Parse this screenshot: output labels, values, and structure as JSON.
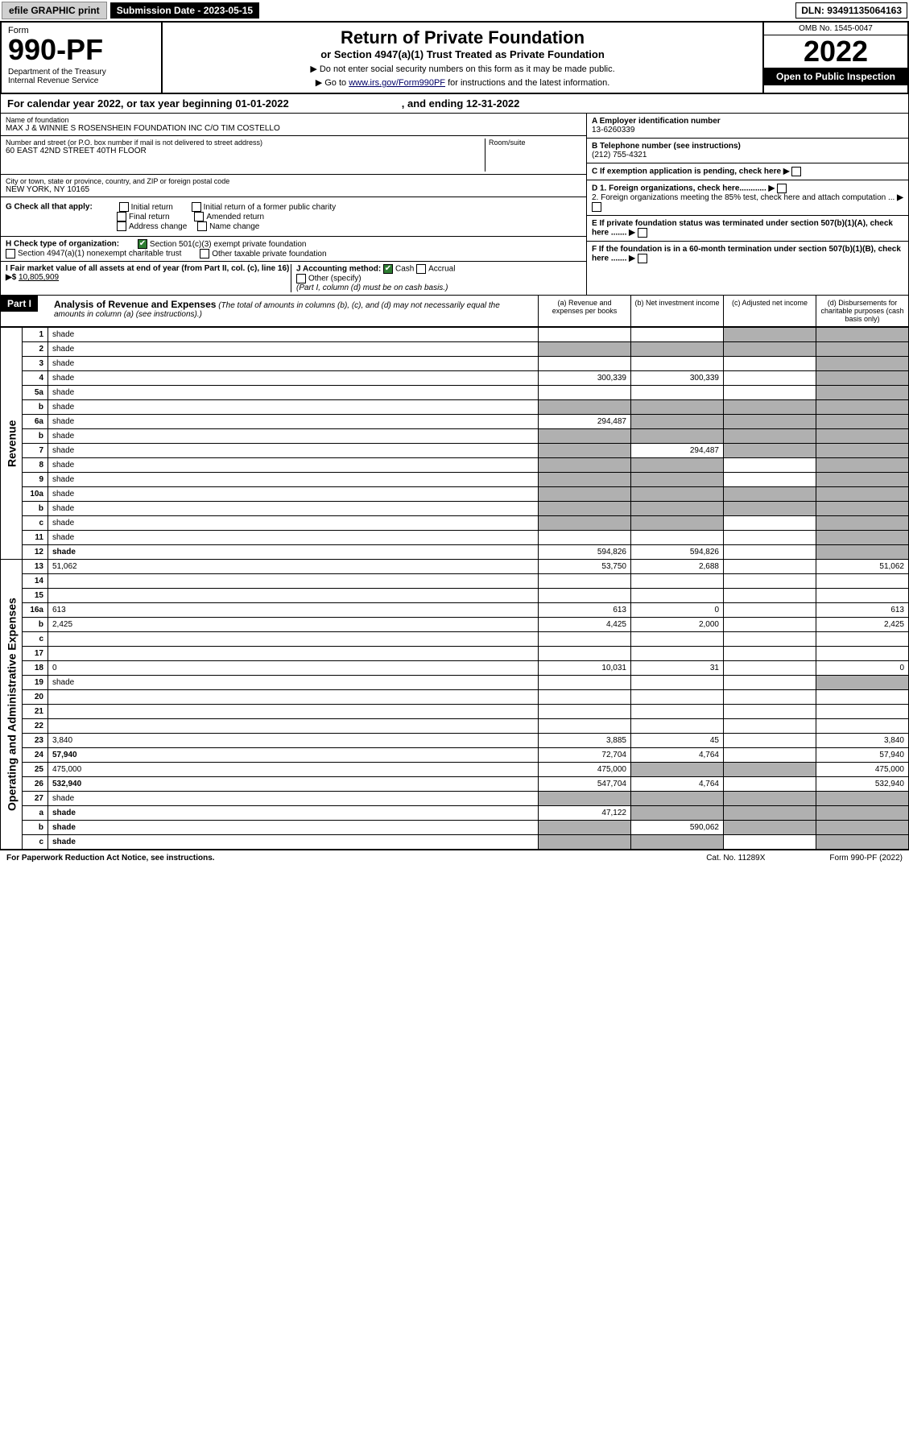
{
  "topbar": {
    "efile": "efile GRAPHIC print",
    "submission": "Submission Date - 2023-05-15",
    "dln": "DLN: 93491135064163"
  },
  "header": {
    "form_word": "Form",
    "form_num": "990-PF",
    "dept": "Department of the Treasury\nInternal Revenue Service",
    "title": "Return of Private Foundation",
    "subtitle": "or Section 4947(a)(1) Trust Treated as Private Foundation",
    "note1": "▶ Do not enter social security numbers on this form as it may be made public.",
    "note2_pre": "▶ Go to ",
    "note2_link": "www.irs.gov/Form990PF",
    "note2_post": " for instructions and the latest information.",
    "omb": "OMB No. 1545-0047",
    "year": "2022",
    "open": "Open to Public Inspection"
  },
  "calendar": {
    "text1": "For calendar year 2022, or tax year beginning 01-01-2022",
    "text2": ", and ending 12-31-2022"
  },
  "identity": {
    "name_lbl": "Name of foundation",
    "name_val": "MAX J & WINNIE S ROSENSHEIN FOUNDATION INC C/O TIM COSTELLO",
    "addr_lbl": "Number and street (or P.O. box number if mail is not delivered to street address)",
    "addr_val": "60 EAST 42ND STREET 40TH FLOOR",
    "room_lbl": "Room/suite",
    "city_lbl": "City or town, state or province, country, and ZIP or foreign postal code",
    "city_val": "NEW YORK, NY  10165",
    "a_lbl": "A Employer identification number",
    "a_val": "13-6260339",
    "b_lbl": "B Telephone number (see instructions)",
    "b_val": "(212) 755-4321",
    "c_lbl": "C If exemption application is pending, check here",
    "d1_lbl": "D 1. Foreign organizations, check here............",
    "d2_lbl": "2. Foreign organizations meeting the 85% test, check here and attach computation ...",
    "e_lbl": "E If private foundation status was terminated under section 507(b)(1)(A), check here .......",
    "f_lbl": "F If the foundation is in a 60-month termination under section 507(b)(1)(B), check here ......."
  },
  "checks": {
    "g_lbl": "G Check all that apply:",
    "g_opts": [
      "Initial return",
      "Initial return of a former public charity",
      "Final return",
      "Amended return",
      "Address change",
      "Name change"
    ],
    "h_lbl": "H Check type of organization:",
    "h1": "Section 501(c)(3) exempt private foundation",
    "h2": "Section 4947(a)(1) nonexempt charitable trust",
    "h3": "Other taxable private foundation",
    "i_lbl": "I Fair market value of all assets at end of year (from Part II, col. (c), line 16) ▶$",
    "i_val": "10,805,909",
    "j_lbl": "J Accounting method:",
    "j_cash": "Cash",
    "j_accrual": "Accrual",
    "j_other": "Other (specify)",
    "j_note": "(Part I, column (d) must be on cash basis.)"
  },
  "part1": {
    "label": "Part I",
    "title": "Analysis of Revenue and Expenses",
    "title_note": "(The total of amounts in columns (b), (c), and (d) may not necessarily equal the amounts in column (a) (see instructions).)",
    "col_a": "(a) Revenue and expenses per books",
    "col_b": "(b) Net investment income",
    "col_c": "(c) Adjusted net income",
    "col_d": "(d) Disbursements for charitable purposes (cash basis only)"
  },
  "sides": {
    "revenue": "Revenue",
    "expenses": "Operating and Administrative Expenses"
  },
  "rows": [
    {
      "n": "1",
      "d": "shade",
      "a": "",
      "b": "",
      "c": "shade"
    },
    {
      "n": "2",
      "d": "shade",
      "a": "shade",
      "b": "shade",
      "c": "shade",
      "chk": true
    },
    {
      "n": "3",
      "d": "shade",
      "a": "",
      "b": "",
      "c": ""
    },
    {
      "n": "4",
      "d": "shade",
      "a": "300,339",
      "b": "300,339",
      "c": ""
    },
    {
      "n": "5a",
      "d": "shade",
      "a": "",
      "b": "",
      "c": ""
    },
    {
      "n": "b",
      "d": "shade",
      "a": "shade",
      "b": "shade",
      "c": "shade"
    },
    {
      "n": "6a",
      "d": "shade",
      "a": "294,487",
      "b": "shade",
      "c": "shade"
    },
    {
      "n": "b",
      "d": "shade",
      "a": "shade",
      "b": "shade",
      "c": "shade"
    },
    {
      "n": "7",
      "d": "shade",
      "a": "shade",
      "b": "294,487",
      "c": "shade"
    },
    {
      "n": "8",
      "d": "shade",
      "a": "shade",
      "b": "shade",
      "c": ""
    },
    {
      "n": "9",
      "d": "shade",
      "a": "shade",
      "b": "shade",
      "c": ""
    },
    {
      "n": "10a",
      "d": "shade",
      "a": "shade",
      "b": "shade",
      "c": "shade"
    },
    {
      "n": "b",
      "d": "shade",
      "a": "shade",
      "b": "shade",
      "c": "shade"
    },
    {
      "n": "c",
      "d": "shade",
      "a": "shade",
      "b": "shade",
      "c": ""
    },
    {
      "n": "11",
      "d": "shade",
      "a": "",
      "b": "",
      "c": ""
    },
    {
      "n": "12",
      "d": "shade",
      "a": "594,826",
      "b": "594,826",
      "c": "",
      "bold": true
    }
  ],
  "exp_rows": [
    {
      "n": "13",
      "d": "51,062",
      "a": "53,750",
      "b": "2,688",
      "c": ""
    },
    {
      "n": "14",
      "d": "",
      "a": "",
      "b": "",
      "c": ""
    },
    {
      "n": "15",
      "d": "",
      "a": "",
      "b": "",
      "c": ""
    },
    {
      "n": "16a",
      "d": "613",
      "a": "613",
      "b": "0",
      "c": ""
    },
    {
      "n": "b",
      "d": "2,425",
      "a": "4,425",
      "b": "2,000",
      "c": ""
    },
    {
      "n": "c",
      "d": "",
      "a": "",
      "b": "",
      "c": ""
    },
    {
      "n": "17",
      "d": "",
      "a": "",
      "b": "",
      "c": ""
    },
    {
      "n": "18",
      "d": "0",
      "a": "10,031",
      "b": "31",
      "c": ""
    },
    {
      "n": "19",
      "d": "shade",
      "a": "",
      "b": "",
      "c": ""
    },
    {
      "n": "20",
      "d": "",
      "a": "",
      "b": "",
      "c": ""
    },
    {
      "n": "21",
      "d": "",
      "a": "",
      "b": "",
      "c": ""
    },
    {
      "n": "22",
      "d": "",
      "a": "",
      "b": "",
      "c": ""
    },
    {
      "n": "23",
      "d": "3,840",
      "a": "3,885",
      "b": "45",
      "c": ""
    },
    {
      "n": "24",
      "d": "57,940",
      "a": "72,704",
      "b": "4,764",
      "c": "",
      "bold": true
    },
    {
      "n": "25",
      "d": "475,000",
      "a": "475,000",
      "b": "shade",
      "c": "shade"
    },
    {
      "n": "26",
      "d": "532,940",
      "a": "547,704",
      "b": "4,764",
      "c": "",
      "bold": true
    },
    {
      "n": "27",
      "d": "shade",
      "a": "shade",
      "b": "shade",
      "c": "shade"
    },
    {
      "n": "a",
      "d": "shade",
      "a": "47,122",
      "b": "shade",
      "c": "shade",
      "bold": true
    },
    {
      "n": "b",
      "d": "shade",
      "a": "shade",
      "b": "590,062",
      "c": "shade",
      "bold": true
    },
    {
      "n": "c",
      "d": "shade",
      "a": "shade",
      "b": "shade",
      "c": "",
      "bold": true
    }
  ],
  "footer": {
    "left": "For Paperwork Reduction Act Notice, see instructions.",
    "mid": "Cat. No. 11289X",
    "right": "Form 990-PF (2022)"
  },
  "colors": {
    "shade": "#b0b0b0",
    "check_green": "#2e7d32",
    "link": "#000066"
  }
}
